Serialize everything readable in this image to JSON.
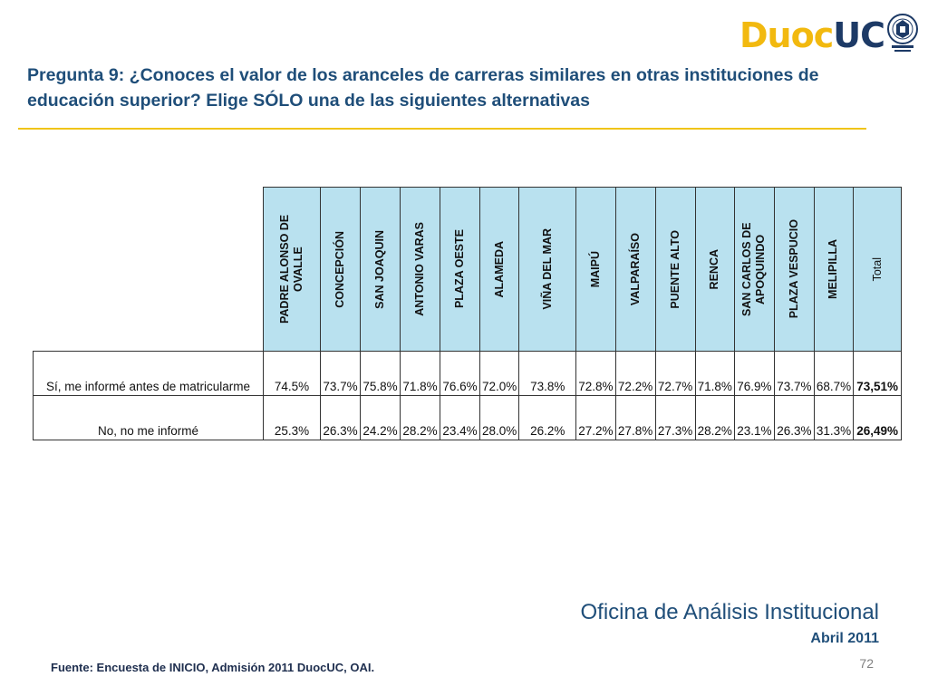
{
  "logo": {
    "text_part1": "Duoc",
    "text_part2": "UC"
  },
  "title": "Pregunta 9: ¿Conoces el valor de los aranceles de carreras similares en otras instituciones de educación superior? Elige SÓLO una de las siguientes alternativas",
  "table": {
    "columns": [
      "PADRE ALONSO DE OVALLE",
      "CONCEPCIÓN",
      "SAN JOAQUIN",
      "ANTONIO VARAS",
      "PLAZA OESTE",
      "ALAMEDA",
      "VIÑA DEL MAR",
      "MAIPÚ",
      "VALPARAÍSO",
      "PUENTE ALTO",
      "RENCA",
      "SAN CARLOS DE APOQUINDO",
      "PLAZA VESPUCIO",
      "MELIPILLA",
      "Total"
    ],
    "rows": [
      {
        "label": "Sí, me informé antes de matricularme",
        "values": [
          "74.5%",
          "73.7%",
          "75.8%",
          "71.8%",
          "76.6%",
          "72.0%",
          "73.8%",
          "72.8%",
          "72.2%",
          "72.7%",
          "71.8%",
          "76.9%",
          "73.7%",
          "68.7%",
          "73,51%"
        ]
      },
      {
        "label": "No, no me informé",
        "values": [
          "25.3%",
          "26.3%",
          "24.2%",
          "28.2%",
          "23.4%",
          "28.0%",
          "26.2%",
          "27.2%",
          "27.8%",
          "27.3%",
          "28.2%",
          "23.1%",
          "26.3%",
          "31.3%",
          "26,49%"
        ]
      }
    ]
  },
  "footer": {
    "office": "Oficina de Análisis Institucional",
    "date": "Abril 2011",
    "page_number": "72",
    "source": "Fuente: Encuesta de INICIO, Admisión 2011 DuocUC, OAI."
  },
  "colors": {
    "title": "#1f4e79",
    "rule": "#f0c419",
    "header_fill": "#b9e1ef",
    "logo_yellow": "#f2b90f",
    "logo_blue": "#1d3a66"
  },
  "icons": {
    "seal": "university-seal-icon"
  }
}
